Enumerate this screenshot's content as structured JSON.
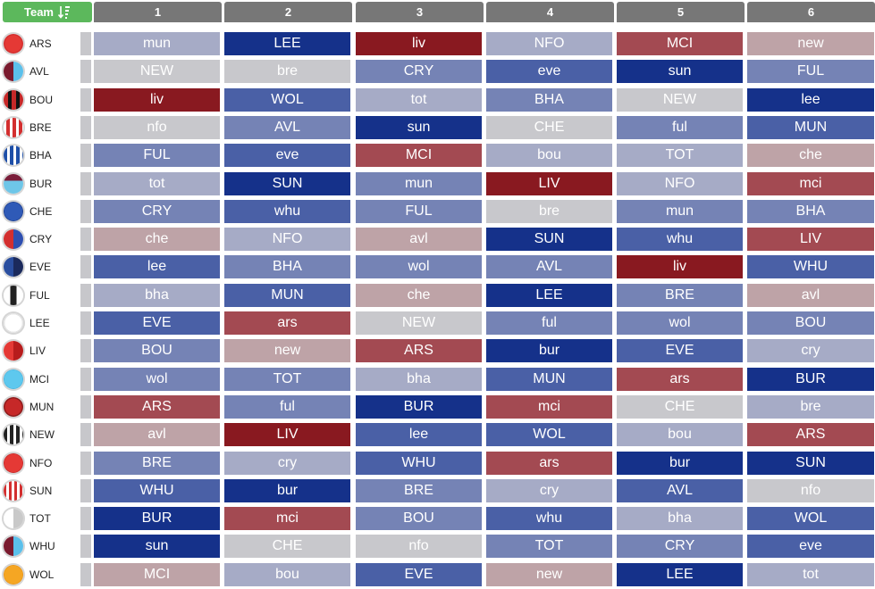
{
  "header": {
    "team_label": "Team",
    "gameweeks": [
      "1",
      "2",
      "3",
      "4",
      "5",
      "6"
    ]
  },
  "colors": {
    "1": "#891920",
    "2": "#a34a52",
    "3": "#bea3a7",
    "4": "#c8c8cc",
    "5": "#a6abc6",
    "6": "#7583b5",
    "7": "#4a60a6",
    "8": "#15318a"
  },
  "teams": [
    {
      "code": "ARS",
      "badge": "radial-gradient(circle, #e53935 60%, #d32f2f 61%)",
      "fixtures": [
        {
          "o": "mun",
          "d": 5
        },
        {
          "o": "LEE",
          "d": 8
        },
        {
          "o": "liv",
          "d": 1
        },
        {
          "o": "NFO",
          "d": 5
        },
        {
          "o": "MCI",
          "d": 2
        },
        {
          "o": "new",
          "d": 3
        }
      ]
    },
    {
      "code": "AVL",
      "badge": "linear-gradient(90deg, #7a1a2e 50%, #5bc0eb 50%)",
      "fixtures": [
        {
          "o": "NEW",
          "d": 4
        },
        {
          "o": "bre",
          "d": 4
        },
        {
          "o": "CRY",
          "d": 6
        },
        {
          "o": "eve",
          "d": 7
        },
        {
          "o": "sun",
          "d": 8
        },
        {
          "o": "FUL",
          "d": 6
        }
      ]
    },
    {
      "code": "BOU",
      "badge": "repeating-linear-gradient(90deg, #c62828 0 5px, #111111 5px 9px)",
      "fixtures": [
        {
          "o": "liv",
          "d": 1
        },
        {
          "o": "WOL",
          "d": 7
        },
        {
          "o": "tot",
          "d": 5
        },
        {
          "o": "BHA",
          "d": 6
        },
        {
          "o": "NEW",
          "d": 4
        },
        {
          "o": "lee",
          "d": 8
        }
      ]
    },
    {
      "code": "BRE",
      "badge": "repeating-linear-gradient(90deg, #ffffff 0 3px, #d32f2f 3px 7px)",
      "fixtures": [
        {
          "o": "nfo",
          "d": 4
        },
        {
          "o": "AVL",
          "d": 6
        },
        {
          "o": "sun",
          "d": 8
        },
        {
          "o": "CHE",
          "d": 4
        },
        {
          "o": "ful",
          "d": 6
        },
        {
          "o": "MUN",
          "d": 7
        }
      ]
    },
    {
      "code": "BHA",
      "badge": "repeating-linear-gradient(90deg, #1e4fa8 0 4px, #ffffff 4px 7px)",
      "fixtures": [
        {
          "o": "FUL",
          "d": 6
        },
        {
          "o": "eve",
          "d": 7
        },
        {
          "o": "MCI",
          "d": 2
        },
        {
          "o": "bou",
          "d": 5
        },
        {
          "o": "TOT",
          "d": 5
        },
        {
          "o": "che",
          "d": 3
        }
      ]
    },
    {
      "code": "BUR",
      "badge": "linear-gradient(180deg, #7a1e3a 0 35%, #6ec6e8 35% 100%)",
      "fixtures": [
        {
          "o": "tot",
          "d": 5
        },
        {
          "o": "SUN",
          "d": 8
        },
        {
          "o": "mun",
          "d": 6
        },
        {
          "o": "LIV",
          "d": 1
        },
        {
          "o": "NFO",
          "d": 5
        },
        {
          "o": "mci",
          "d": 2
        }
      ]
    },
    {
      "code": "CHE",
      "badge": "radial-gradient(circle, #2f5ab7 65%, #1e3f8f 66%)",
      "fixtures": [
        {
          "o": "CRY",
          "d": 6
        },
        {
          "o": "whu",
          "d": 7
        },
        {
          "o": "FUL",
          "d": 6
        },
        {
          "o": "bre",
          "d": 4
        },
        {
          "o": "mun",
          "d": 6
        },
        {
          "o": "BHA",
          "d": 6
        }
      ]
    },
    {
      "code": "CRY",
      "badge": "linear-gradient(90deg, #d32f2f 50%, #2e4fb0 50%)",
      "fixtures": [
        {
          "o": "che",
          "d": 3
        },
        {
          "o": "NFO",
          "d": 5
        },
        {
          "o": "avl",
          "d": 3
        },
        {
          "o": "SUN",
          "d": 8
        },
        {
          "o": "whu",
          "d": 7
        },
        {
          "o": "LIV",
          "d": 2
        }
      ]
    },
    {
      "code": "EVE",
      "badge": "linear-gradient(90deg, #2a4e9f 50%, #1b2a5c 50%)",
      "fixtures": [
        {
          "o": "lee",
          "d": 7
        },
        {
          "o": "BHA",
          "d": 6
        },
        {
          "o": "wol",
          "d": 6
        },
        {
          "o": "AVL",
          "d": 6
        },
        {
          "o": "liv",
          "d": 1
        },
        {
          "o": "WHU",
          "d": 7
        }
      ]
    },
    {
      "code": "FUL",
      "badge": "linear-gradient(90deg, #ffffff 35%, #222222 35% 65%, #ffffff 65%)",
      "fixtures": [
        {
          "o": "bha",
          "d": 5
        },
        {
          "o": "MUN",
          "d": 7
        },
        {
          "o": "che",
          "d": 3
        },
        {
          "o": "LEE",
          "d": 8
        },
        {
          "o": "BRE",
          "d": 6
        },
        {
          "o": "avl",
          "d": 3
        }
      ]
    },
    {
      "code": "LEE",
      "badge": "radial-gradient(circle, #ffffff 62%, #e4e4e4 63%)",
      "fixtures": [
        {
          "o": "EVE",
          "d": 7
        },
        {
          "o": "ars",
          "d": 2
        },
        {
          "o": "NEW",
          "d": 4
        },
        {
          "o": "ful",
          "d": 6
        },
        {
          "o": "wol",
          "d": 6
        },
        {
          "o": "BOU",
          "d": 6
        }
      ]
    },
    {
      "code": "LIV",
      "badge": "linear-gradient(90deg, #e53935 50%, #b71c1c 50%)",
      "fixtures": [
        {
          "o": "BOU",
          "d": 6
        },
        {
          "o": "new",
          "d": 3
        },
        {
          "o": "ARS",
          "d": 2
        },
        {
          "o": "bur",
          "d": 8
        },
        {
          "o": "EVE",
          "d": 7
        },
        {
          "o": "cry",
          "d": 5
        }
      ]
    },
    {
      "code": "MCI",
      "badge": "radial-gradient(circle, #5ec8ee 65%, #49b6df 66%)",
      "fixtures": [
        {
          "o": "wol",
          "d": 6
        },
        {
          "o": "TOT",
          "d": 6
        },
        {
          "o": "bha",
          "d": 5
        },
        {
          "o": "MUN",
          "d": 7
        },
        {
          "o": "ars",
          "d": 2
        },
        {
          "o": "BUR",
          "d": 8
        }
      ]
    },
    {
      "code": "MUN",
      "badge": "radial-gradient(circle, #c62828 60%, #8e1b1b 61%)",
      "fixtures": [
        {
          "o": "ARS",
          "d": 2
        },
        {
          "o": "ful",
          "d": 6
        },
        {
          "o": "BUR",
          "d": 8
        },
        {
          "o": "mci",
          "d": 2
        },
        {
          "o": "CHE",
          "d": 4
        },
        {
          "o": "bre",
          "d": 5
        }
      ]
    },
    {
      "code": "NEW",
      "badge": "repeating-linear-gradient(90deg, #222222 0 4px, #ffffff 4px 7px)",
      "fixtures": [
        {
          "o": "avl",
          "d": 3
        },
        {
          "o": "LIV",
          "d": 1
        },
        {
          "o": "lee",
          "d": 7
        },
        {
          "o": "WOL",
          "d": 7
        },
        {
          "o": "bou",
          "d": 5
        },
        {
          "o": "ARS",
          "d": 2
        }
      ]
    },
    {
      "code": "NFO",
      "badge": "radial-gradient(circle, #e53935 65%, #c62828 66%)",
      "fixtures": [
        {
          "o": "BRE",
          "d": 6
        },
        {
          "o": "cry",
          "d": 5
        },
        {
          "o": "WHU",
          "d": 7
        },
        {
          "o": "ars",
          "d": 2
        },
        {
          "o": "bur",
          "d": 8
        },
        {
          "o": "SUN",
          "d": 8
        }
      ]
    },
    {
      "code": "SUN",
      "badge": "repeating-linear-gradient(90deg, #d32f2f 0 3px, #ffffff 3px 6px)",
      "fixtures": [
        {
          "o": "WHU",
          "d": 7
        },
        {
          "o": "bur",
          "d": 8
        },
        {
          "o": "BRE",
          "d": 6
        },
        {
          "o": "cry",
          "d": 5
        },
        {
          "o": "AVL",
          "d": 7
        },
        {
          "o": "nfo",
          "d": 4
        }
      ]
    },
    {
      "code": "TOT",
      "badge": "linear-gradient(90deg, #ffffff 50%, #c9c9c9 50%)",
      "fixtures": [
        {
          "o": "BUR",
          "d": 8
        },
        {
          "o": "mci",
          "d": 2
        },
        {
          "o": "BOU",
          "d": 6
        },
        {
          "o": "whu",
          "d": 7
        },
        {
          "o": "bha",
          "d": 5
        },
        {
          "o": "WOL",
          "d": 7
        }
      ]
    },
    {
      "code": "WHU",
      "badge": "linear-gradient(90deg, #7a1a2e 50%, #5bc0eb 50%)",
      "fixtures": [
        {
          "o": "sun",
          "d": 8
        },
        {
          "o": "CHE",
          "d": 4
        },
        {
          "o": "nfo",
          "d": 4
        },
        {
          "o": "TOT",
          "d": 6
        },
        {
          "o": "CRY",
          "d": 6
        },
        {
          "o": "eve",
          "d": 7
        }
      ]
    },
    {
      "code": "WOL",
      "badge": "radial-gradient(circle, #f5a623 65%, #e8951a 66%)",
      "fixtures": [
        {
          "o": "MCI",
          "d": 3
        },
        {
          "o": "bou",
          "d": 5
        },
        {
          "o": "EVE",
          "d": 7
        },
        {
          "o": "new",
          "d": 3
        },
        {
          "o": "LEE",
          "d": 8
        },
        {
          "o": "tot",
          "d": 5
        }
      ]
    }
  ]
}
